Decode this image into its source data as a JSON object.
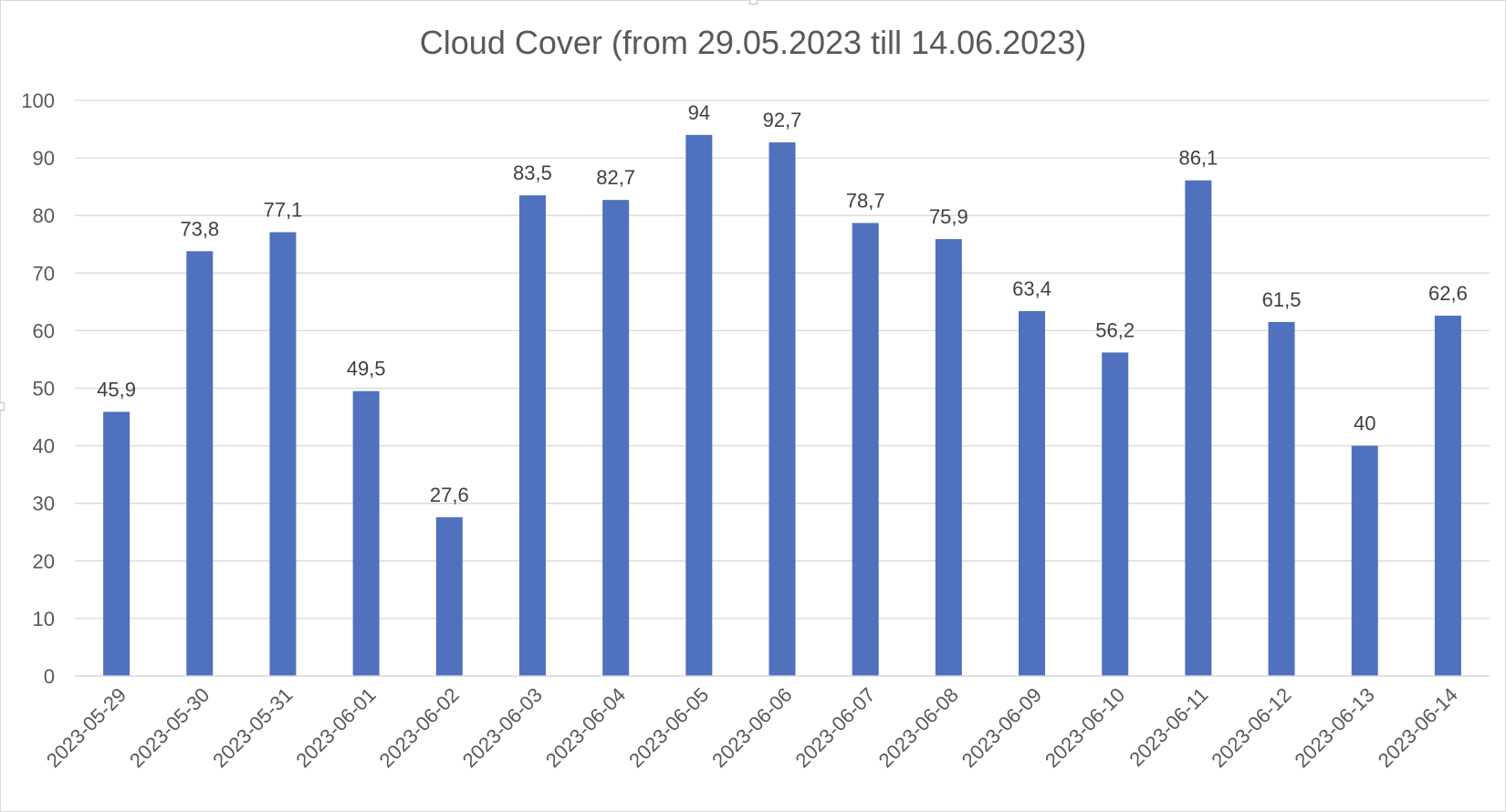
{
  "chart_data": {
    "type": "bar",
    "title": "Cloud Cover (from 29.05.2023 till 14.06.2023)",
    "xlabel": "",
    "ylabel": "",
    "categories": [
      "2023-05-29",
      "2023-05-30",
      "2023-05-31",
      "2023-06-01",
      "2023-06-02",
      "2023-06-03",
      "2023-06-04",
      "2023-06-05",
      "2023-06-06",
      "2023-06-07",
      "2023-06-08",
      "2023-06-09",
      "2023-06-10",
      "2023-06-11",
      "2023-06-12",
      "2023-06-13",
      "2023-06-14"
    ],
    "values": [
      45.9,
      73.8,
      77.1,
      49.5,
      27.6,
      83.5,
      82.7,
      94,
      92.7,
      78.7,
      75.9,
      63.4,
      56.2,
      86.1,
      61.5,
      40,
      62.6
    ],
    "data_labels": [
      "45,9",
      "73,8",
      "77,1",
      "49,5",
      "27,6",
      "83,5",
      "82,7",
      "94",
      "92,7",
      "78,7",
      "75,9",
      "63,4",
      "56,2",
      "86,1",
      "61,5",
      "40",
      "62,6"
    ],
    "ylim": [
      0,
      100
    ],
    "yticks": [
      0,
      10,
      20,
      30,
      40,
      50,
      60,
      70,
      80,
      90,
      100
    ],
    "grid": true,
    "legend": "none",
    "colors": {
      "bar": "#4f71be",
      "grid": "#d9d9d9",
      "text": "#595959"
    }
  }
}
